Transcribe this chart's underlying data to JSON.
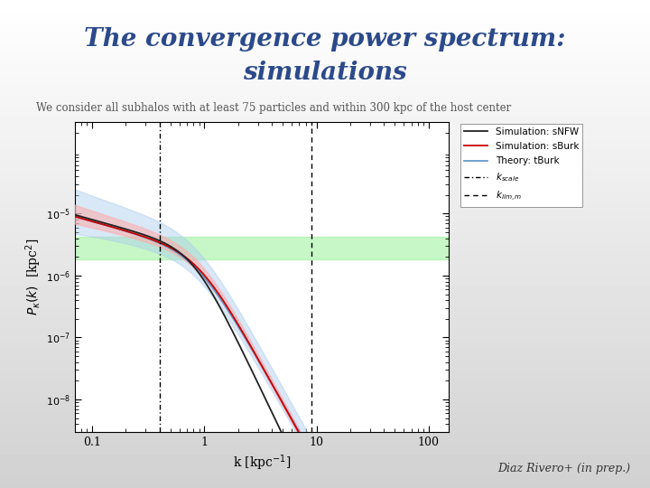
{
  "title_line1": "The convergence power spectrum:",
  "title_line2": "simulations",
  "subtitle": "We consider all subhalos with at least 75 particles and within 300 kpc of the host center",
  "xlabel": "k [kpc$^{-1}$]",
  "ylabel": "$P_{\\kappa}(k)$  [kpc$^2$]",
  "bg_top_color": "#d0d0d8",
  "bg_bottom_color": "#c8c8d0",
  "plot_bg_color": "#ffffff",
  "title_color": "#2B4A8B",
  "subtitle_color": "#555555",
  "xlim": [
    0.07,
    150
  ],
  "ylim": [
    3e-09,
    0.0003
  ],
  "k_scale": 0.4,
  "k_lim": 9.0,
  "green_band_low": 1.8e-06,
  "green_band_high": 4.2e-06,
  "green_color": "#90EE90",
  "green_alpha": 0.5,
  "nfw_color": "#222222",
  "burk_color": "#cc0000",
  "theory_color": "#6699cc",
  "blue_band_color": "#aaccee",
  "red_band_color": "#ffaaaa"
}
